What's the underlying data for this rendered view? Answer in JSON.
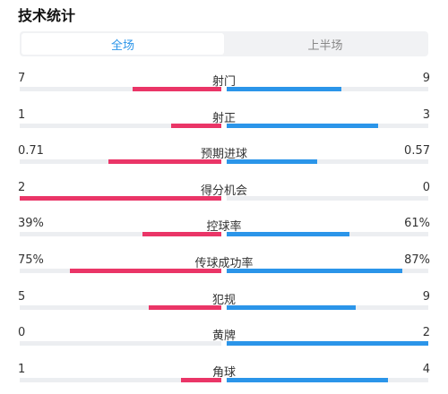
{
  "title": "技术统计",
  "tabs": [
    {
      "label": "全场",
      "active": true
    },
    {
      "label": "上半场",
      "active": false
    }
  ],
  "colors": {
    "home": "#ea3567",
    "away": "#2b95e9",
    "track": "#eceef1",
    "active_tab": "#2b95e9"
  },
  "stats": [
    {
      "label": "射门",
      "home": "7",
      "away": "9",
      "home_frac": 0.44,
      "away_frac": 0.57
    },
    {
      "label": "射正",
      "home": "1",
      "away": "3",
      "home_frac": 0.25,
      "away_frac": 0.75
    },
    {
      "label": "预期进球",
      "home": "0.71",
      "away": "0.57",
      "home_frac": 0.56,
      "away_frac": 0.45
    },
    {
      "label": "得分机会",
      "home": "2",
      "away": "0",
      "home_frac": 1.0,
      "away_frac": 0.0
    },
    {
      "label": "控球率",
      "home": "39%",
      "away": "61%",
      "home_frac": 0.39,
      "away_frac": 0.61
    },
    {
      "label": "传球成功率",
      "home": "75%",
      "away": "87%",
      "home_frac": 0.75,
      "away_frac": 0.87
    },
    {
      "label": "犯规",
      "home": "5",
      "away": "9",
      "home_frac": 0.36,
      "away_frac": 0.64
    },
    {
      "label": "黄牌",
      "home": "0",
      "away": "2",
      "home_frac": 0.0,
      "away_frac": 1.0
    },
    {
      "label": "角球",
      "home": "1",
      "away": "4",
      "home_frac": 0.2,
      "away_frac": 0.8
    }
  ]
}
